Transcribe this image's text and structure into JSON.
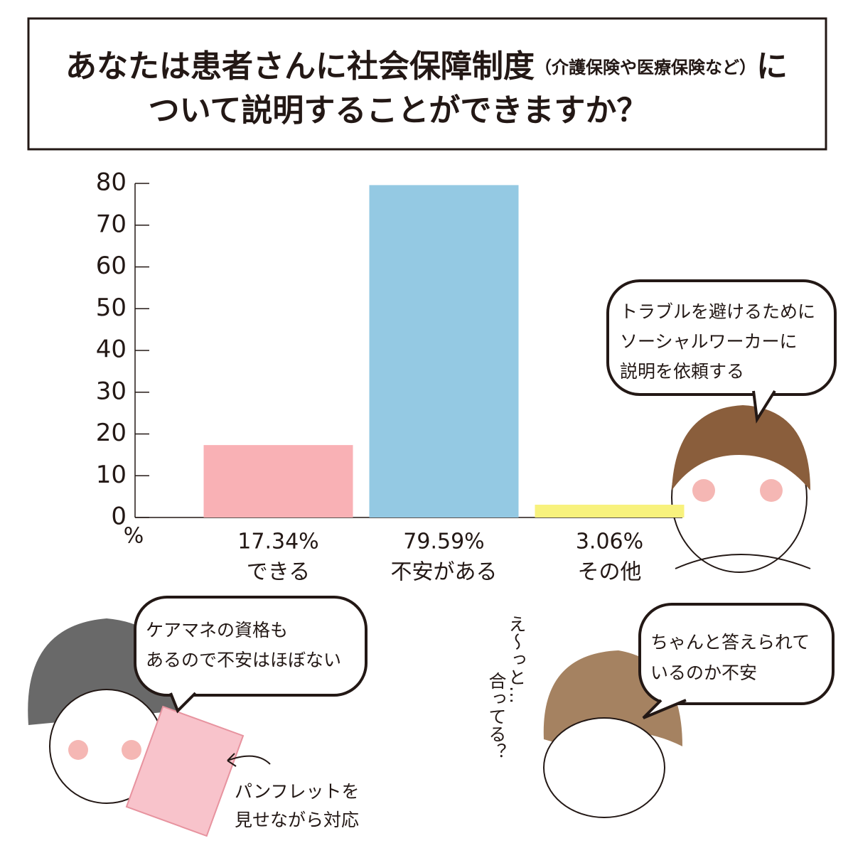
{
  "chart_data": {
    "type": "bar",
    "title": {
      "line1": "あなたは患者さんに社会保障制度",
      "note": "（介護保険や医療保険など）",
      "line1_end": "に",
      "line2": "ついて説明することができますか？"
    },
    "categories": [
      "できる",
      "不安がある",
      "その他"
    ],
    "values": [
      17.34,
      79.59,
      3.06
    ],
    "value_labels": [
      "17.34%",
      "79.59%",
      "3.06%"
    ],
    "colors": [
      "#f9b1b5",
      "#94c9e3",
      "#f8f27d"
    ],
    "ylim": [
      0,
      80
    ],
    "yticks": [
      0,
      10,
      20,
      30,
      40,
      50,
      60,
      70,
      80
    ],
    "y_unit": "%",
    "annotations": [
      {
        "lines": [
          "トラブルを避けるために",
          "ソーシャルワーカーに",
          "説明を依頼する"
        ]
      },
      {
        "lines": [
          "ケアマネの資格も",
          "あるので不安はほぼない"
        ]
      },
      {
        "lines": [
          "ちゃんと答えられて",
          "いるのか不安"
        ]
      },
      {
        "lines": [
          "パンフレットを",
          "見せながら対応"
        ]
      },
      {
        "lines": [
          "え〜っと…",
          "合ってる？"
        ]
      }
    ]
  }
}
